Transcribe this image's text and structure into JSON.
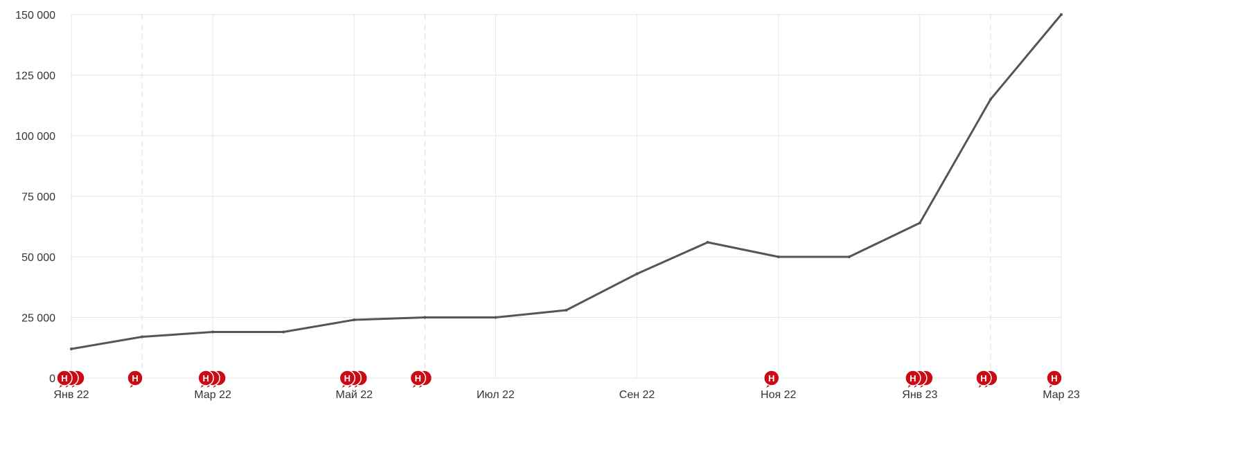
{
  "chart_data": {
    "type": "line",
    "title": "",
    "xlabel": "",
    "ylabel": "",
    "ylim": [
      0,
      150000
    ],
    "y_ticks": [
      0,
      25000,
      50000,
      75000,
      100000,
      125000,
      150000
    ],
    "y_tick_labels": [
      "0",
      "25 000",
      "50 000",
      "75 000",
      "100 000",
      "125 000",
      "150 000"
    ],
    "x": [
      "2022-01",
      "2022-02",
      "2022-03",
      "2022-04",
      "2022-05",
      "2022-06",
      "2022-07",
      "2022-08",
      "2022-09",
      "2022-10",
      "2022-11",
      "2022-12",
      "2023-01",
      "2023-02",
      "2023-03"
    ],
    "x_tick_labels": [
      {
        "x": "2022-01",
        "label": "Янв 22"
      },
      {
        "x": "2022-03",
        "label": "Мар 22"
      },
      {
        "x": "2022-05",
        "label": "Май 22"
      },
      {
        "x": "2022-07",
        "label": "Июл 22"
      },
      {
        "x": "2022-09",
        "label": "Сен 22"
      },
      {
        "x": "2022-11",
        "label": "Ноя 22"
      },
      {
        "x": "2023-01",
        "label": "Янв 23"
      },
      {
        "x": "2023-03",
        "label": "Мар 23"
      }
    ],
    "series": [
      {
        "values": [
          12000,
          17000,
          19000,
          19000,
          24000,
          25000,
          25000,
          28000,
          43000,
          56000,
          50000,
          50000,
          64000,
          115000,
          150000
        ],
        "color": "#555555"
      }
    ],
    "dashed_vertical_lines_at": [
      "2022-02",
      "2022-06",
      "2023-02"
    ],
    "event_markers": [
      {
        "x": "2022-01",
        "count": 3,
        "letter": "Н"
      },
      {
        "x": "2022-02",
        "count": 1,
        "letter": "Н"
      },
      {
        "x": "2022-03",
        "count": 3,
        "letter": "Н"
      },
      {
        "x": "2022-05",
        "count": 3,
        "letter": "Н"
      },
      {
        "x": "2022-06",
        "count": 2,
        "letter": "Н"
      },
      {
        "x": "2022-11",
        "count": 1,
        "letter": "Н"
      },
      {
        "x": "2023-01",
        "count": 3,
        "letter": "Н"
      },
      {
        "x": "2023-02",
        "count": 2,
        "letter": "Н"
      },
      {
        "x": "2023-03",
        "count": 1,
        "letter": "Н"
      }
    ],
    "marker_color": "#cc0a14",
    "grid": true,
    "legend": "none"
  }
}
